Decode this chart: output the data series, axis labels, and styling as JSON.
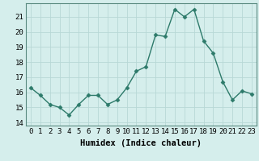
{
  "x": [
    0,
    1,
    2,
    3,
    4,
    5,
    6,
    7,
    8,
    9,
    10,
    11,
    12,
    13,
    14,
    15,
    16,
    17,
    18,
    19,
    20,
    21,
    22,
    23
  ],
  "y": [
    16.3,
    15.8,
    15.2,
    15.0,
    14.5,
    15.2,
    15.8,
    15.8,
    15.2,
    15.5,
    16.3,
    17.4,
    17.7,
    19.8,
    19.7,
    21.5,
    21.0,
    21.5,
    19.4,
    18.6,
    16.7,
    15.5,
    16.1,
    15.9
  ],
  "line_color": "#2d7a6a",
  "marker": "D",
  "marker_size": 2.5,
  "bg_color": "#d5eeec",
  "grid_color": "#b8d8d6",
  "spine_color": "#5a8a80",
  "xlabel": "Humidex (Indice chaleur)",
  "xlim": [
    -0.5,
    23.5
  ],
  "ylim": [
    13.8,
    21.9
  ],
  "yticks": [
    14,
    15,
    16,
    17,
    18,
    19,
    20,
    21
  ],
  "xtick_labels": [
    "0",
    "1",
    "2",
    "3",
    "4",
    "5",
    "6",
    "7",
    "8",
    "9",
    "10",
    "11",
    "12",
    "13",
    "14",
    "15",
    "16",
    "17",
    "18",
    "19",
    "20",
    "21",
    "22",
    "23"
  ],
  "xlabel_fontsize": 7.5,
  "tick_fontsize": 6.5,
  "linewidth": 1.0
}
